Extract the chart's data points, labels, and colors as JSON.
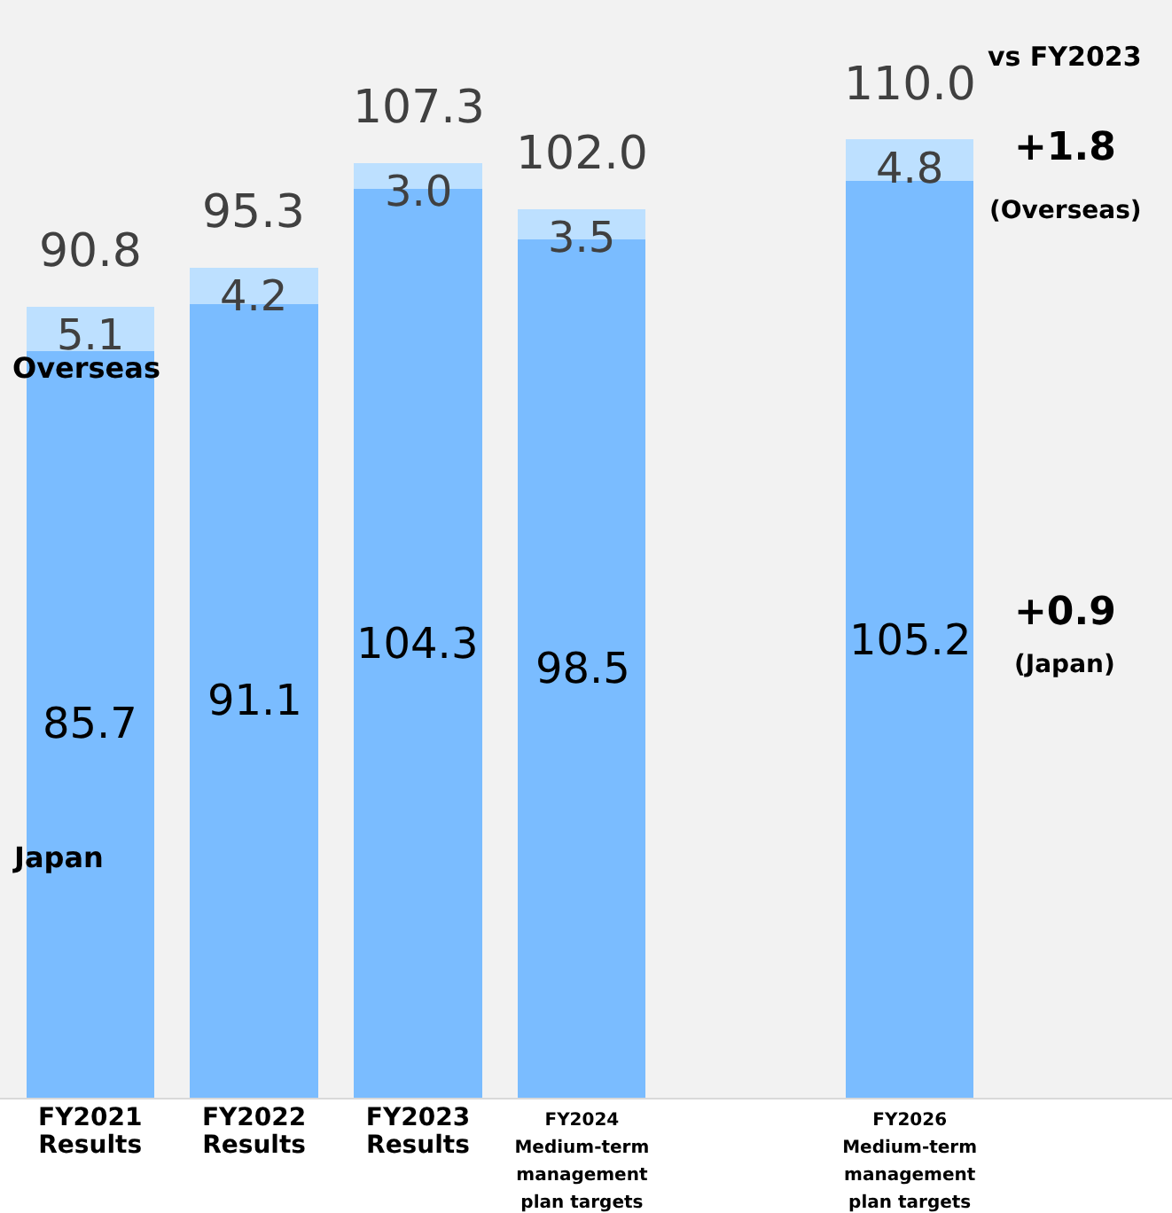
{
  "chart_data": {
    "type": "bar",
    "stacked": true,
    "categories": [
      "FY2021\nResults",
      "FY2022\nResults",
      "FY2023\nResults",
      "FY2024\nMedium-term\nmanagement\nplan targets",
      null,
      "FY2026\nMedium-term\nmanagement\nplan targets"
    ],
    "series": [
      {
        "name": "Japan",
        "color": "#7abcff",
        "values": [
          85.7,
          91.1,
          104.3,
          98.5,
          null,
          105.2
        ],
        "value_labels": [
          "85.7",
          "91.1",
          "104.3",
          "98.5",
          null,
          "105.2"
        ]
      },
      {
        "name": "Overseas",
        "color": "#bde0ff",
        "values": [
          5.1,
          4.2,
          3.0,
          3.5,
          null,
          4.8
        ],
        "value_labels": [
          "5.1",
          "4.2",
          "3.0",
          "3.5",
          null,
          "4.8"
        ]
      }
    ],
    "totals": [
      "90.8",
      "95.3",
      "107.3",
      "102.0",
      null,
      "110.0"
    ],
    "annotations": [
      "vs FY2023",
      "+1.8",
      "(Overseas)",
      "+0.9",
      "(Japan)"
    ],
    "ylim": [
      0,
      126
    ],
    "tick_labels": "x",
    "grid": false,
    "legend": false
  }
}
